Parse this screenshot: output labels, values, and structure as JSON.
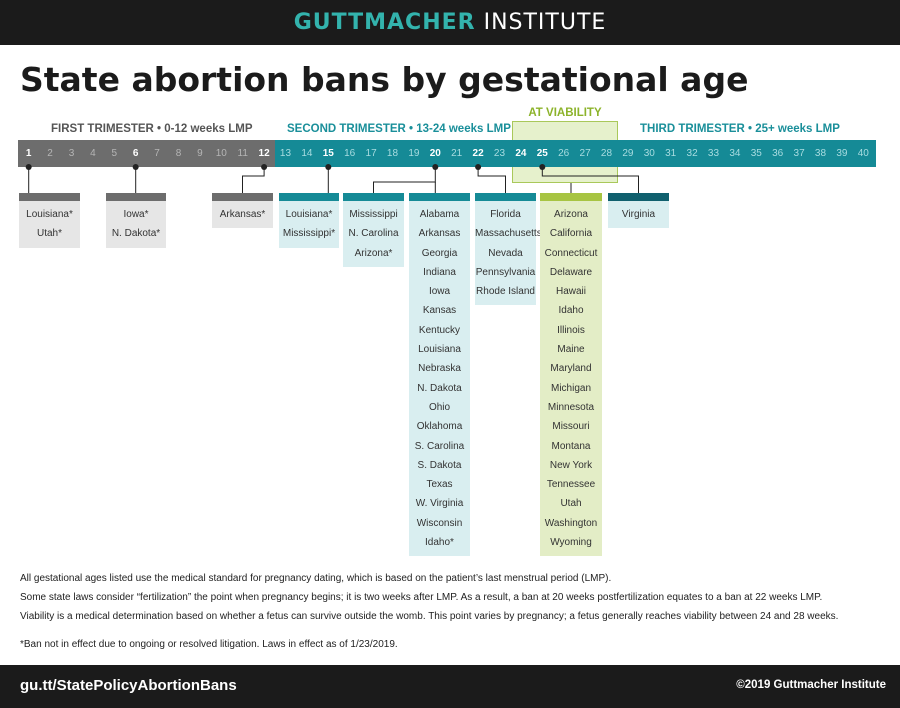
{
  "header": {
    "brand_part1": "GUTTMACHER",
    "brand_part2": "INSTITUTE"
  },
  "title": "State abortion bans by gestational age",
  "timeline": {
    "first_trimester": "FIRST TRIMESTER • 0-12 weeks LMP",
    "second_trimester": "SECOND TRIMESTER • 13-24 weeks LMP",
    "third_trimester": "THIRD TRIMESTER • 25+ weeks LMP",
    "viability_label": "AT VIABILITY",
    "weeks": [
      1,
      2,
      3,
      4,
      5,
      6,
      7,
      8,
      9,
      10,
      11,
      12,
      13,
      14,
      15,
      16,
      17,
      18,
      19,
      20,
      21,
      22,
      23,
      24,
      25,
      26,
      27,
      28,
      29,
      30,
      31,
      32,
      33,
      34,
      35,
      36,
      37,
      38,
      39,
      40
    ],
    "ban_weeks": [
      1,
      6,
      12,
      15,
      20,
      22,
      24,
      25
    ]
  },
  "groups": [
    {
      "week": 1,
      "theme": "gray",
      "states": [
        "Louisiana*",
        "Utah*"
      ]
    },
    {
      "week": 6,
      "theme": "gray",
      "states": [
        "Iowa*",
        "N. Dakota*"
      ]
    },
    {
      "week": 12,
      "theme": "gray",
      "states": [
        "Arkansas*"
      ]
    },
    {
      "week": 15,
      "theme": "teal",
      "states": [
        "Louisiana*",
        "Mississippi*"
      ]
    },
    {
      "week": 20,
      "theme": "teal",
      "states": [
        "Mississippi",
        "N. Carolina",
        "Arizona*"
      ]
    },
    {
      "week": 20,
      "theme": "teal",
      "states": [
        "Alabama",
        "Arkansas",
        "Georgia",
        "Indiana",
        "Iowa",
        "Kansas",
        "Kentucky",
        "Louisiana",
        "Nebraska",
        "N. Dakota",
        "Ohio",
        "Oklahoma",
        "S. Carolina",
        "S. Dakota",
        "Texas",
        "W. Virginia",
        "Wisconsin",
        "Idaho*"
      ]
    },
    {
      "week": 22,
      "theme": "teal",
      "states": [
        "Florida",
        "Massachusetts",
        "Nevada",
        "Pennsylvania",
        "Rhode Island"
      ]
    },
    {
      "week": "viability",
      "theme": "green",
      "states": [
        "Arizona",
        "California",
        "Connecticut",
        "Delaware",
        "Hawaii",
        "Idaho",
        "Illinois",
        "Maine",
        "Maryland",
        "Michigan",
        "Minnesota",
        "Missouri",
        "Montana",
        "New York",
        "Tennessee",
        "Utah",
        "Washington",
        "Wyoming"
      ]
    },
    {
      "week": 24,
      "theme": "navy",
      "states": [
        "Virginia"
      ]
    }
  ],
  "notes": {
    "line1": "All gestational ages listed use the medical standard for pregnancy dating, which is based on the patient’s last menstrual period (LMP).",
    "line2": "Some state laws consider “fertilization” the point when pregnancy begins; it is two weeks after LMP. As a result, a ban at 20 weeks postfertilization equates to a ban at 22 weeks LMP.",
    "line3": "Viability is a medical determination based on whether a fetus can survive outside the womb. This point varies by pregnancy; a fetus generally reaches viability between 24 and 28 weeks.",
    "footnote": "*Ban not in effect due to ongoing or resolved litigation.  Laws in effect as of 1/23/2019."
  },
  "footer": {
    "url": "gu.tt/StatePolicyAbortionBans",
    "copyright": "©2019 Guttmacher Institute"
  },
  "colors": {
    "dark": "#1b1b1b",
    "teal": "#158a96",
    "gray": "#6d6d6d",
    "green": "#a7c442",
    "navy": "#10606e"
  }
}
